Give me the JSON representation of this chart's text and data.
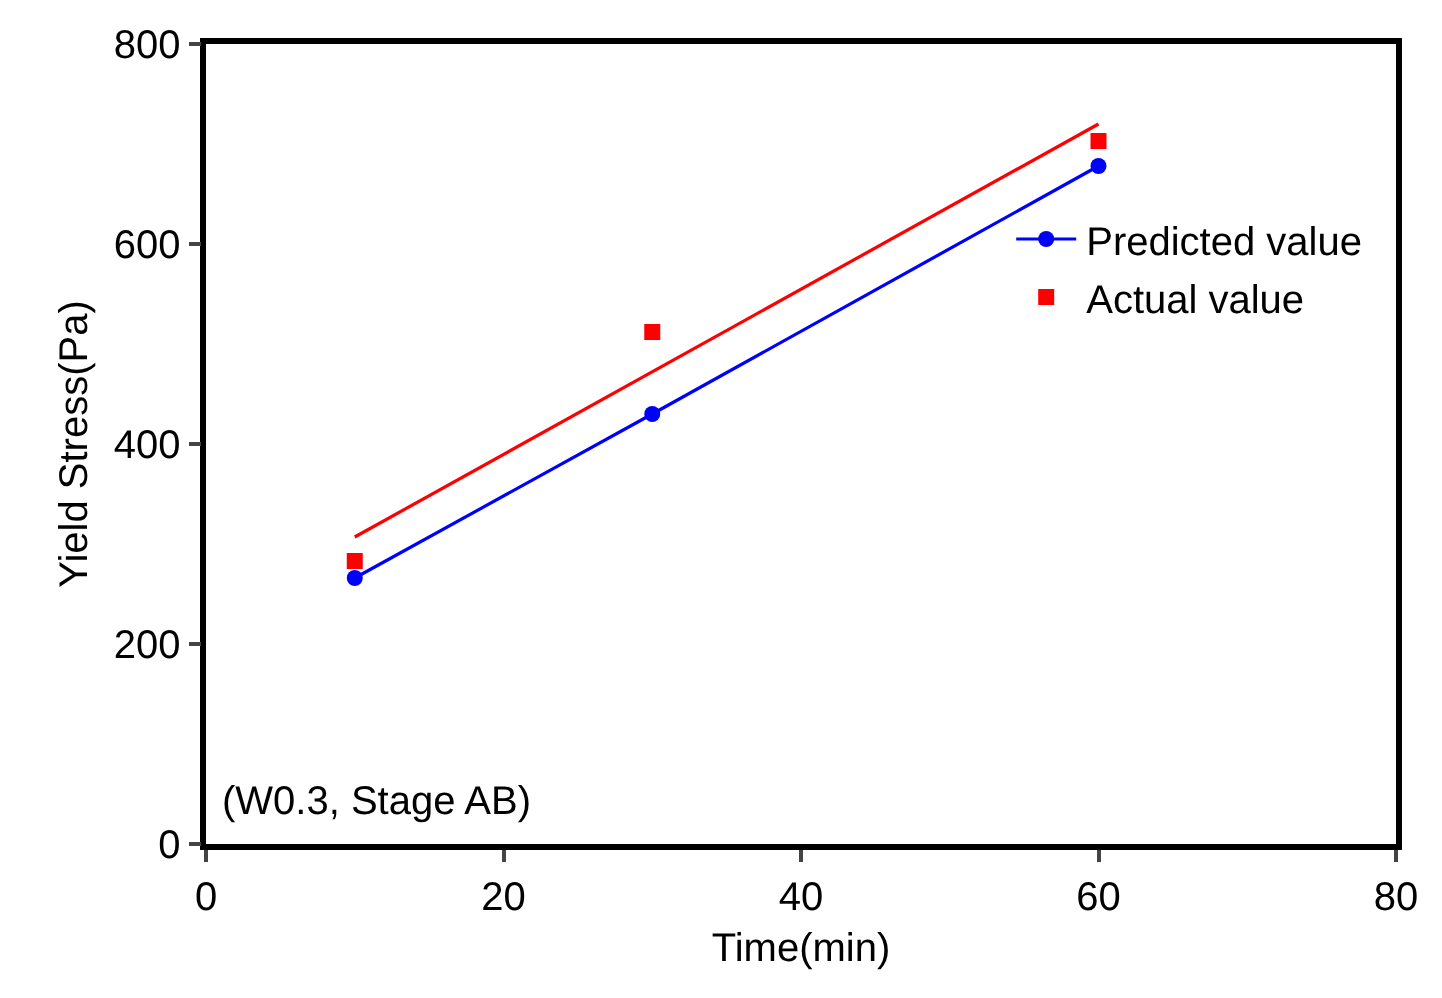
{
  "chart_data": {
    "type": "line",
    "xlabel": "Time(min)",
    "ylabel": "Yield Stress(Pa)",
    "annotations": [
      "(W0.3, Stage AB)"
    ],
    "x": [
      10,
      30,
      60
    ],
    "series": [
      {
        "name": "Predicted value",
        "color": "#0000ff",
        "values": [
          266,
          430,
          678
        ],
        "marker": "circle",
        "line_style": "solid"
      },
      {
        "name": "Actual value",
        "color": "#ff0000",
        "type": "scatter",
        "values": [
          283,
          512,
          703
        ],
        "marker": "square"
      },
      {
        "type": "line",
        "color": "#ff0000",
        "x": [
          10,
          60
        ],
        "values": [
          307,
          720
        ],
        "marker": "none",
        "line_style": "solid"
      }
    ],
    "xlim": [
      0,
      80
    ],
    "xticks": [
      0,
      20,
      40,
      60,
      80
    ],
    "ylim": [
      0,
      800
    ],
    "yticks": [
      0,
      200,
      400,
      600,
      800
    ],
    "grid": false,
    "legend": "right"
  }
}
